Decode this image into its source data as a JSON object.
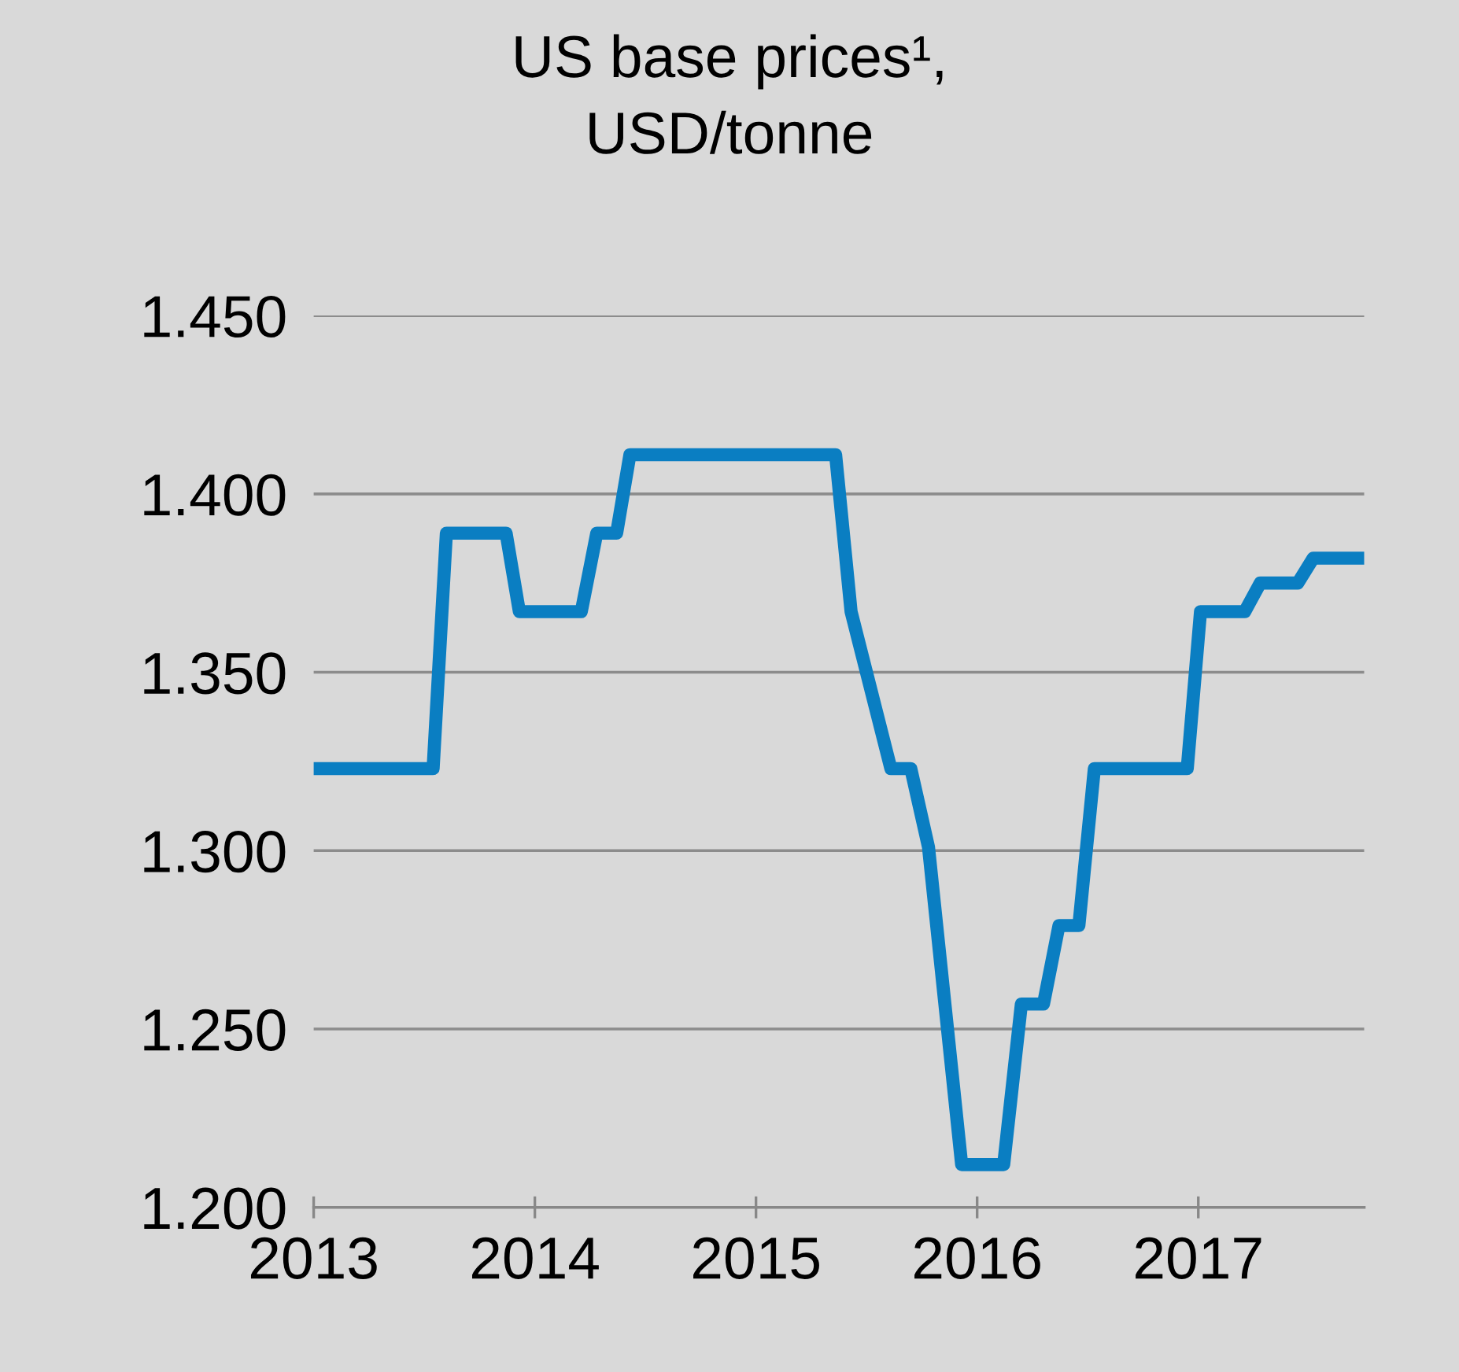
{
  "chart_data": {
    "type": "line",
    "title": "US base prices¹,\nUSD/tonne",
    "x": [
      2013.01,
      2013.54,
      2013.6,
      2013.87,
      2013.93,
      2014.21,
      2014.28,
      2014.37,
      2014.43,
      2015.36,
      2015.43,
      2015.61,
      2015.7,
      2015.78,
      2015.93,
      2016.12,
      2016.2,
      2016.3,
      2016.37,
      2016.46,
      2016.53,
      2016.95,
      2017.01,
      2017.21,
      2017.28,
      2017.45,
      2017.52,
      2017.73
    ],
    "series": [
      {
        "color": "#0a7ec2",
        "values": [
          1323,
          1323,
          1389,
          1389,
          1367,
          1367,
          1389,
          1389,
          1411,
          1411,
          1367,
          1323,
          1323,
          1301,
          1212,
          1212,
          1257,
          1257,
          1279,
          1279,
          1323,
          1323,
          1367,
          1367,
          1375,
          1375,
          1382,
          1382
        ]
      }
    ],
    "xlim": [
      2013,
      2017.75
    ],
    "xticks": [
      2013,
      2014,
      2015,
      2016,
      2017
    ],
    "ylim": [
      1200,
      1450
    ],
    "yticks": [
      {
        "value": 1200,
        "label": "1.200"
      },
      {
        "value": 1250,
        "label": "1.250"
      },
      {
        "value": 1300,
        "label": "1.300"
      },
      {
        "value": 1350,
        "label": "1.350"
      },
      {
        "value": 1400,
        "label": "1.400"
      },
      {
        "value": 1450,
        "label": "1.450"
      }
    ],
    "grid": "y",
    "legend": false,
    "marker": "none",
    "line_style": "solid"
  }
}
